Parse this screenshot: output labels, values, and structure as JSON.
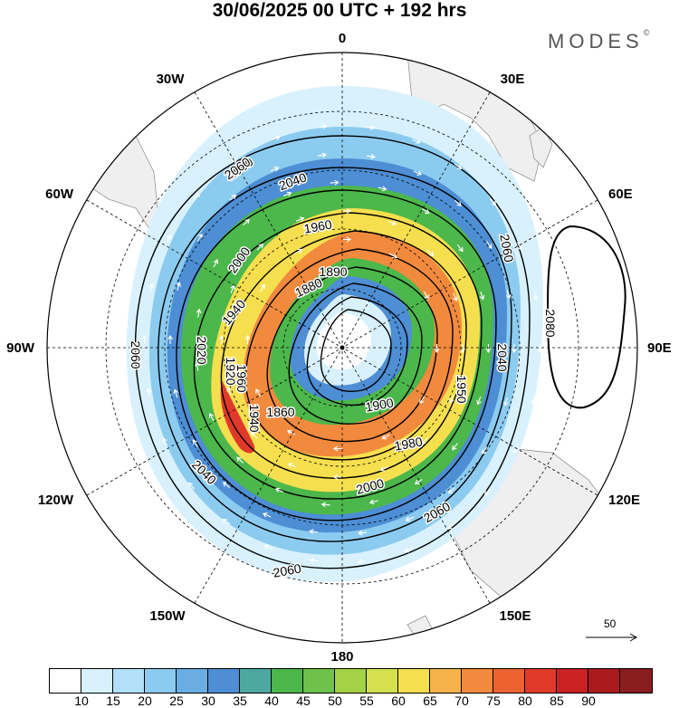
{
  "title": "30/06/2025  00 UTC  + 192 hrs",
  "logo": "MODES",
  "logo_mark": "©",
  "longitude_labels": {
    "top": "0",
    "top_right": "30E",
    "upper_right": "60E",
    "right": "90E",
    "lower_right": "120E",
    "bottom_right": "150E",
    "bottom": "180",
    "bottom_left": "150W",
    "lower_left": "120W",
    "left": "90W",
    "upper_left": "60W",
    "top_left": "30W"
  },
  "contour_labels": [
    "2060",
    "2040",
    "1960",
    "2000",
    "1940",
    "1880",
    "1890",
    "1920",
    "1860",
    "1900",
    "2020",
    "1960",
    "1940",
    "2040",
    "2000",
    "1980",
    "2060",
    "2080",
    "2060",
    "2060",
    "1950",
    "2040",
    "2060",
    "2060"
  ],
  "vector_reference": {
    "value": "50",
    "icon": "arrow-right-icon"
  },
  "colorbar": {
    "colors": [
      "#ffffff",
      "#d8f1fd",
      "#b1e0f8",
      "#8ccbf0",
      "#6aade3",
      "#4d8ed4",
      "#4da9a0",
      "#4cb74b",
      "#6cc24a",
      "#a4d246",
      "#d4e04c",
      "#f6df4e",
      "#f5b24a",
      "#f28a3e",
      "#ec6331",
      "#e0392a",
      "#c92124",
      "#a91b1f",
      "#8a1d1e"
    ],
    "labels": [
      "10",
      "15",
      "20",
      "25",
      "30",
      "35",
      "40",
      "45",
      "50",
      "55",
      "60",
      "65",
      "70",
      "75",
      "80",
      "85",
      "90"
    ]
  },
  "colors": {
    "land": "#efefef",
    "coast": "#888888",
    "contour": "#000000",
    "grid": "#000000"
  }
}
